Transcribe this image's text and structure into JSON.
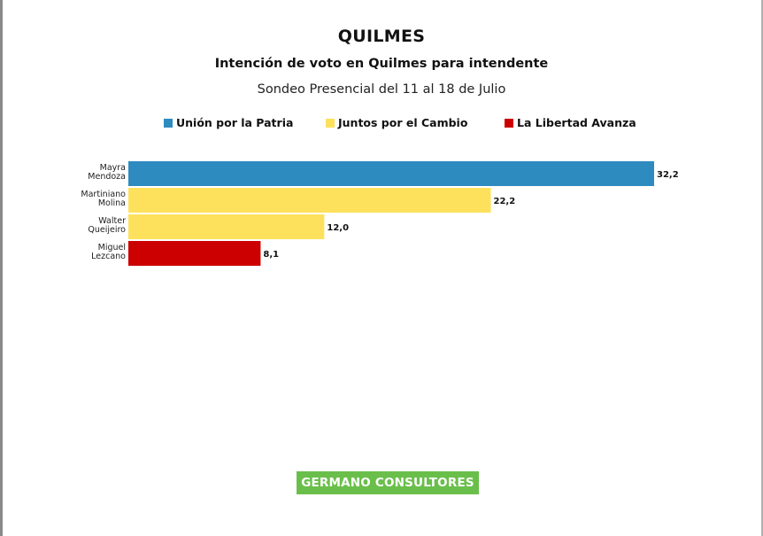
{
  "chart_data": {
    "type": "bar",
    "orientation": "horizontal",
    "title": "QUILMES",
    "subtitle": "Intención de voto en Quilmes para intendente",
    "note": "Sondeo Presencial del 11 al 18 de Julio",
    "legend": {
      "placement": "top",
      "entries": [
        {
          "label": "Unión por la Patria",
          "color": "#2e8bc0"
        },
        {
          "label": "Juntos por el Cambio",
          "color": "#fde15c"
        },
        {
          "label": "La Libertad Avanza",
          "color": "#cc0000"
        }
      ]
    },
    "categories": [
      [
        "Mayra",
        "Mendoza"
      ],
      [
        "Martiniano",
        "Molina"
      ],
      [
        "Walter",
        "Queijeiro"
      ],
      [
        "Miguel",
        "Lezcano"
      ]
    ],
    "values": [
      32.2,
      22.2,
      12.0,
      8.1
    ],
    "value_labels": [
      "32,2",
      "22,2",
      "12,0",
      "8,1"
    ],
    "bar_colors": [
      "#2e8bc0",
      "#fde15c",
      "#fde15c",
      "#cc0000"
    ],
    "xlim": [
      0,
      32.2
    ],
    "grid": false
  },
  "footer": {
    "source": "GERMANO CONSULTORES",
    "color": "#6abf4b"
  }
}
